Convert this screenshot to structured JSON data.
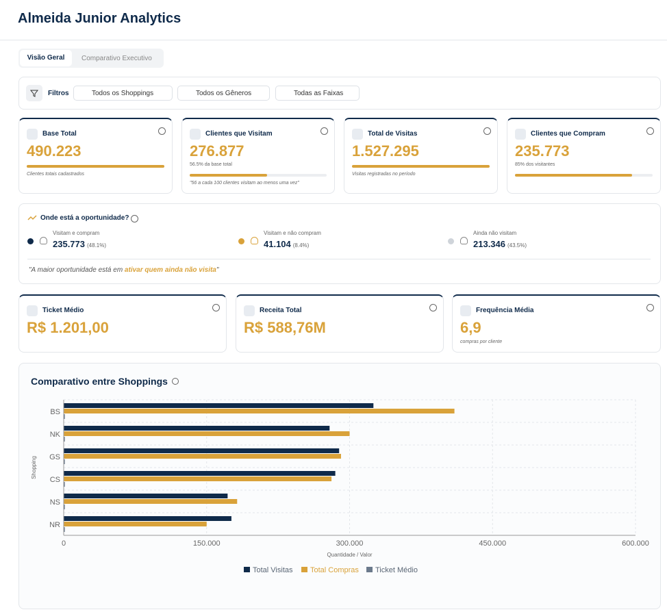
{
  "header": {
    "title": "Almeida Junior Analytics"
  },
  "tabs": [
    "Visão Geral",
    "Comparativo Executivo"
  ],
  "filters": {
    "label": "Filtros",
    "items": [
      "Todos os Shoppings",
      "Todos os Gêneros",
      "Todas as Faixas"
    ]
  },
  "kpis": [
    {
      "title": "Base Total",
      "value": "490.223",
      "note": "Clientes totais cadastrados",
      "progress": 100
    },
    {
      "title": "Clientes que Visitam",
      "value": "276.877",
      "sub": "56.5% da base total",
      "note": "\"56 a cada 100 clientes visitam ao menos uma vez\"",
      "progress": 56.5
    },
    {
      "title": "Total de Visitas",
      "value": "1.527.295",
      "note": "Visitas registradas no período",
      "progress": 100
    },
    {
      "title": "Clientes que Compram",
      "value": "235.773",
      "sub": "85% dos visitantes",
      "progress": 85
    }
  ],
  "opportunity": {
    "title": "Onde está a oportunidade?",
    "items": [
      {
        "label": "Visitam e compram",
        "value": "235.773",
        "pct": "(48.1%)"
      },
      {
        "label": "Visitam e não compram",
        "value": "41.104",
        "pct": "(8.4%)"
      },
      {
        "label": "Ainda não visitam",
        "value": "213.346",
        "pct": "(43.5%)"
      }
    ],
    "quote": [
      "\"A maior oportunidade está em ",
      "ativar quem ainda não visita",
      "\""
    ]
  },
  "kpis2": [
    {
      "title": "Ticket Médio",
      "value": "R$ 1.201,00"
    },
    {
      "title": "Receita Total",
      "value": "R$ 588,76M"
    },
    {
      "title": "Frequência Média",
      "value": "6,9",
      "note": "compras por cliente"
    }
  ],
  "chart_data": {
    "type": "bar",
    "orientation": "horizontal",
    "title": "Comparativo entre Shoppings",
    "xlabel": "Quantidade / Valor",
    "ylabel": "Shopping",
    "categories": [
      "BS",
      "NK",
      "GS",
      "CS",
      "NS",
      "NR"
    ],
    "series": [
      {
        "name": "Total Visitas",
        "color": "#0f2a4a",
        "values": [
          325000,
          279000,
          289000,
          285000,
          172000,
          176000
        ]
      },
      {
        "name": "Total Compras",
        "color": "#d9a23a",
        "values": [
          410000,
          300000,
          291000,
          281000,
          182000,
          150000
        ]
      },
      {
        "name": "Ticket Médio",
        "color": "#6b7a8c",
        "values": [
          1200,
          1200,
          1200,
          1200,
          1200,
          1200
        ]
      }
    ],
    "xlim": [
      0,
      600000
    ],
    "xticks": [
      0,
      {
        "value": 150000,
        "label": "150.000"
      },
      {
        "value": 300000,
        "label": "300.000"
      },
      {
        "value": 450000,
        "label": "450.000"
      },
      {
        "value": 600000,
        "label": "600.000"
      }
    ],
    "grid": true
  }
}
